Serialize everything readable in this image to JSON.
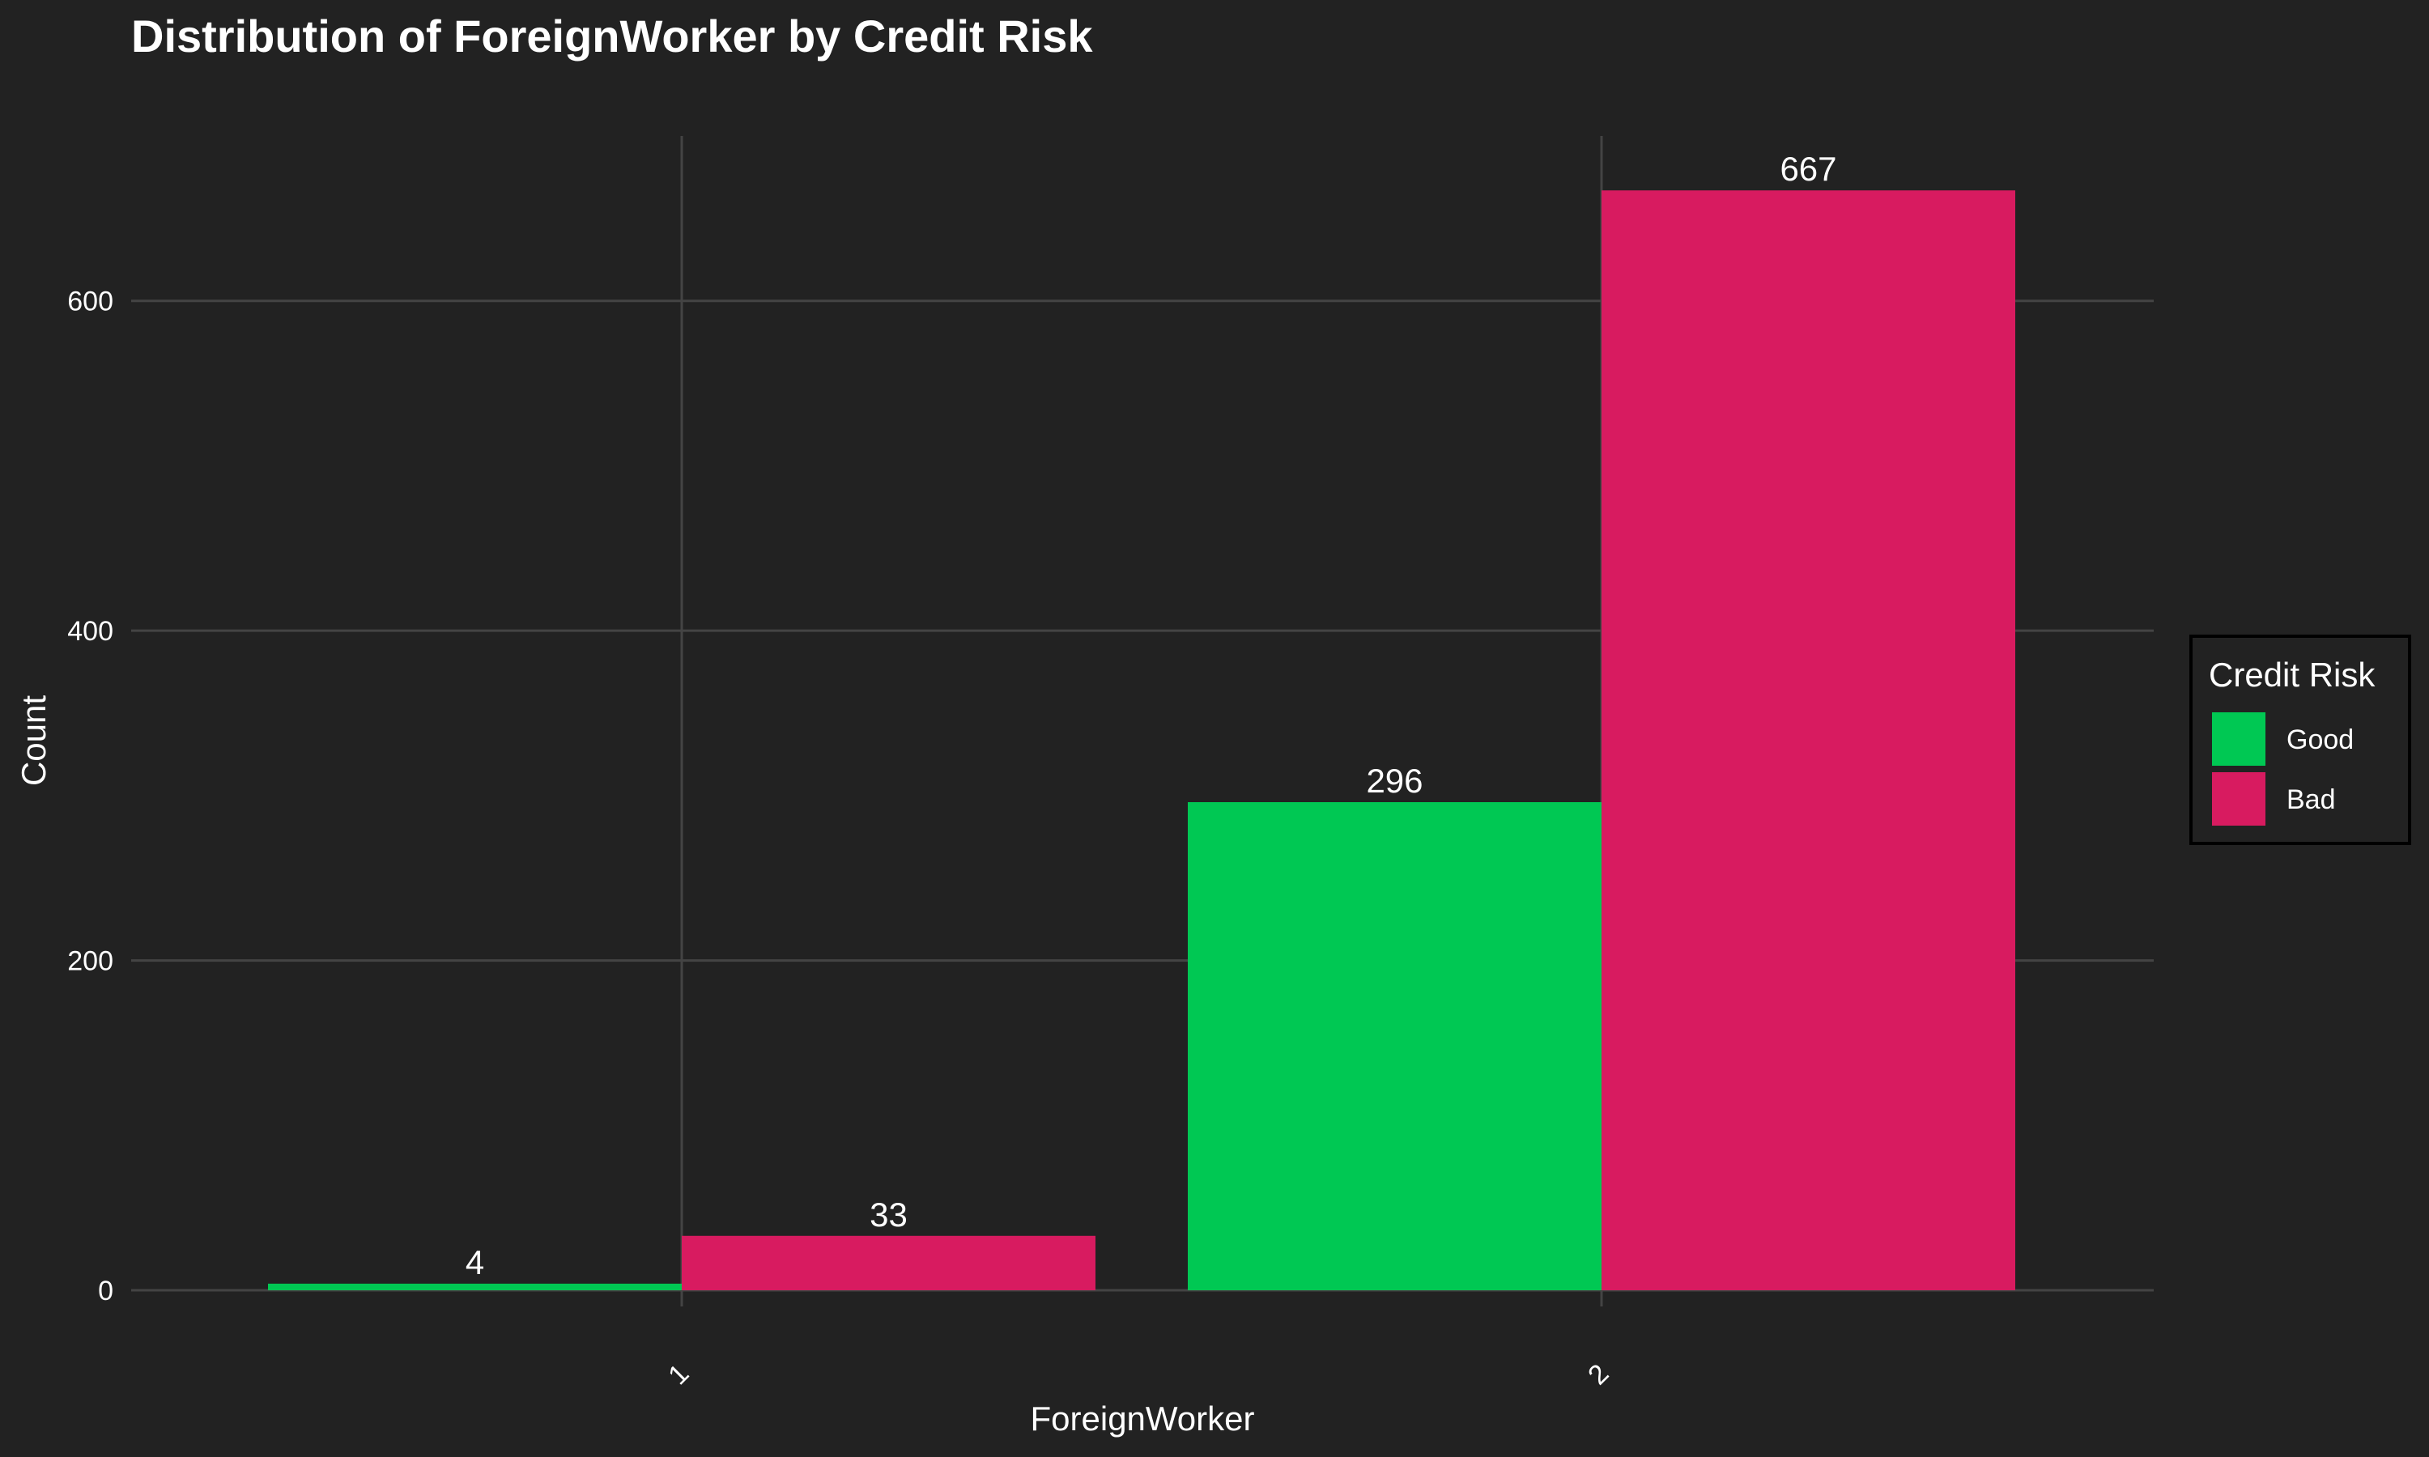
{
  "chart_data": {
    "type": "bar",
    "title": "Distribution of ForeignWorker by Credit Risk",
    "xlabel": "ForeignWorker",
    "ylabel": "Count",
    "categories": [
      "1",
      "2"
    ],
    "series": [
      {
        "name": "Good",
        "color": "#00c853",
        "values": [
          4,
          296
        ]
      },
      {
        "name": "Bad",
        "color": "#d81b60",
        "values": [
          33,
          667
        ]
      }
    ],
    "yticks": [
      0,
      200,
      400,
      600
    ],
    "ylim": [
      0,
      700
    ],
    "grid": true,
    "legend": {
      "title": "Credit Risk",
      "placement": "right"
    }
  }
}
